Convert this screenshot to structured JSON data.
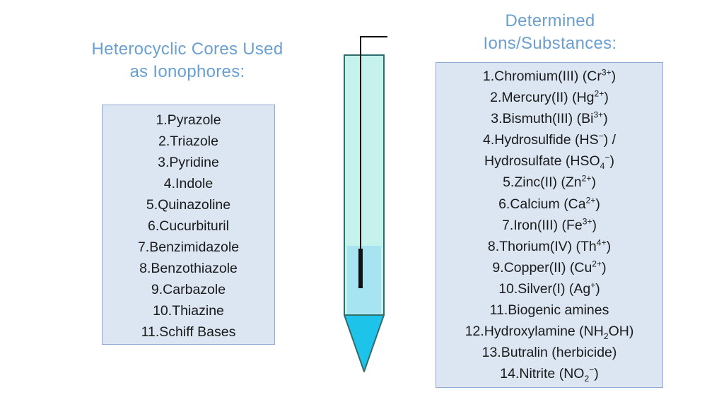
{
  "left_panel": {
    "heading_lines": [
      "Heterocyclic Cores Used",
      "as Ionophores:"
    ],
    "items": [
      "1.Pyrazole",
      "2.Triazole",
      "3.Pyridine",
      "4.Indole",
      "5.Quinazoline",
      "6.Cucurbituril",
      "7.Benzimidazole",
      "8.Benzothiazole",
      "9.Carbazole",
      "10.Thiazine",
      "11.Schiff Bases"
    ]
  },
  "right_panel": {
    "heading_lines": [
      "Determined",
      "Ions/Substances:"
    ],
    "items": [
      [
        {
          "t": "1.Chromium(III) (Cr"
        },
        {
          "sup": "3+"
        },
        {
          "t": ")"
        }
      ],
      [
        {
          "t": "2.Mercury(II) (Hg"
        },
        {
          "sup": "2+"
        },
        {
          "t": ")"
        }
      ],
      [
        {
          "t": "3.Bismuth(III) (Bi"
        },
        {
          "sup": "3+"
        },
        {
          "t": ")"
        }
      ],
      [
        {
          "t": "4.Hydrosulfide (HS"
        },
        {
          "sup": "−"
        },
        {
          "t": ") /"
        }
      ],
      [
        {
          "t": "Hydrosulfate (HSO"
        },
        {
          "sub": "4"
        },
        {
          "sup": "−"
        },
        {
          "t": ")"
        }
      ],
      [
        {
          "t": "5.Zinc(II) (Zn"
        },
        {
          "sup": "2+"
        },
        {
          "t": ")"
        }
      ],
      [
        {
          "t": "6.Calcium (Ca"
        },
        {
          "sup": "2+"
        },
        {
          "t": ")"
        }
      ],
      [
        {
          "t": "7.Iron(III) (Fe"
        },
        {
          "sup": "3+"
        },
        {
          "t": ")"
        }
      ],
      [
        {
          "t": "8.Thorium(IV) (Th"
        },
        {
          "sup": "4+"
        },
        {
          "t": ")"
        }
      ],
      [
        {
          "t": "9.Copper(II) (Cu"
        },
        {
          "sup": "2+"
        },
        {
          "t": ")"
        }
      ],
      [
        {
          "t": "10.Silver(I) (Ag"
        },
        {
          "sup": "+"
        },
        {
          "t": ")"
        }
      ],
      [
        {
          "t": "11.Biogenic amines"
        }
      ],
      [
        {
          "t": "12.Hydroxylamine (NH"
        },
        {
          "sub": "2"
        },
        {
          "t": "OH)"
        }
      ],
      [
        {
          "t": "13.Butralin (herbicide)"
        }
      ],
      [
        {
          "t": "14.Nitrite (NO"
        },
        {
          "sub": "2"
        },
        {
          "sup": "−"
        },
        {
          "t": ")"
        }
      ]
    ]
  },
  "colors": {
    "heading": "#6a9fd0",
    "box_fill": "#dce6f2",
    "box_border": "#8eaad6",
    "electrode_body": "#c6f2ee",
    "electrode_outline": "#2f6e6e",
    "electrode_tip": "#1ec3ea",
    "inner_membrane": "#a6e4f2",
    "wire": "#000000"
  }
}
